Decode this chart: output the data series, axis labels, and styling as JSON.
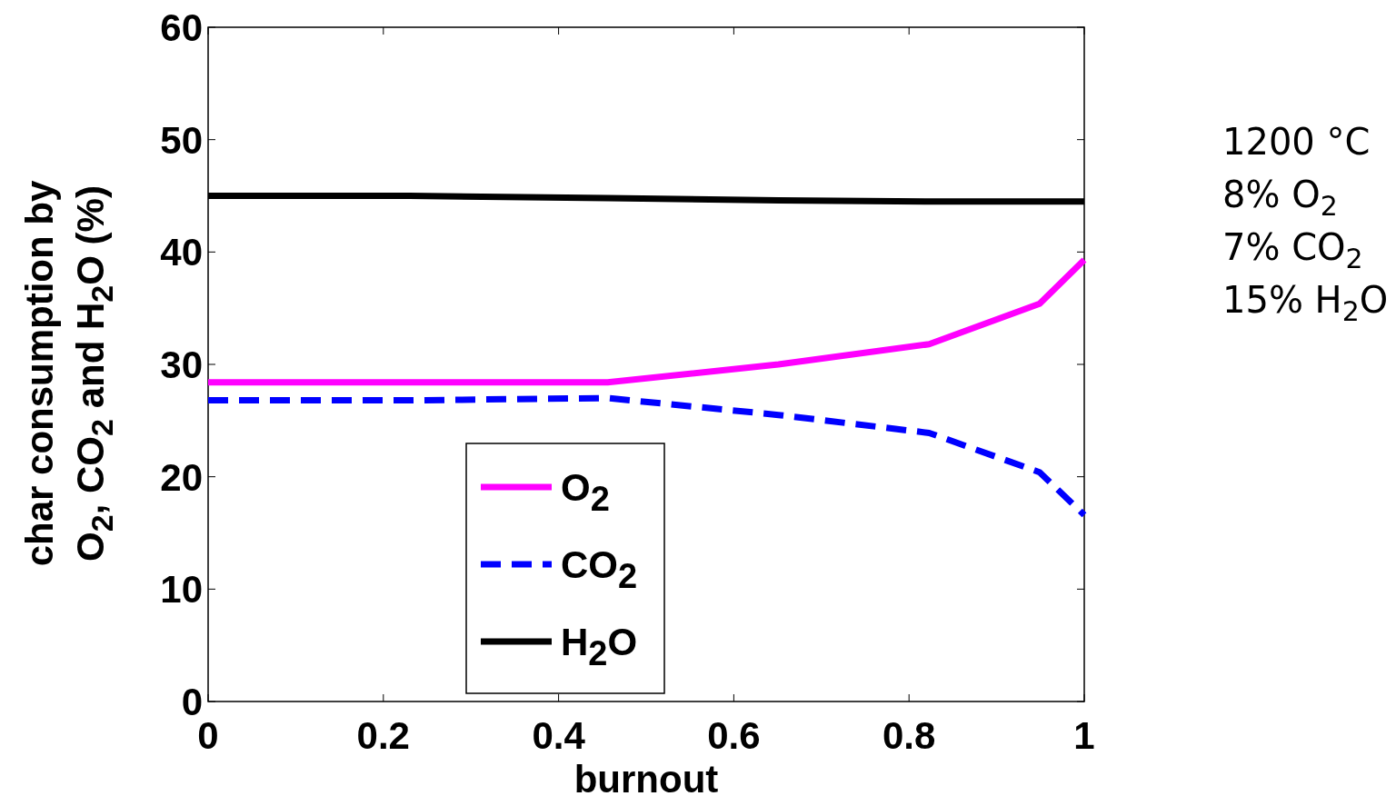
{
  "chart_data": {
    "type": "line",
    "xlabel": "burnout",
    "ylabel": "char consumption by\nO$_{2}$, CO$_{2}$ and H$_{2}$O (%)",
    "xlim": [
      0,
      1
    ],
    "ylim": [
      0,
      60
    ],
    "xticks": [
      0,
      0.2,
      0.4,
      0.6,
      0.8,
      1
    ],
    "yticks": [
      0,
      10,
      20,
      30,
      40,
      50,
      60
    ],
    "grid": false,
    "legend": "bottom",
    "annotations": [
      "1200 °C",
      "8% O$_{2}$",
      "7% CO$_{2}$",
      "15% H$_{2}$O"
    ],
    "series": [
      {
        "name": "O$_{2}$",
        "color": "#ff00ff",
        "line_style": "solid",
        "x": [
          0,
          0.456,
          0.651,
          0.823,
          0.949,
          1
        ],
        "values": [
          28.4,
          28.4,
          30.0,
          31.8,
          35.4,
          39.3
        ]
      },
      {
        "name": "CO$_{2}$",
        "color": "#0000ff",
        "line_style": "dashed",
        "x": [
          0,
          0.23,
          0.456,
          0.651,
          0.823,
          0.949,
          1
        ],
        "values": [
          26.8,
          26.8,
          27.0,
          25.5,
          23.9,
          20.4,
          16.6
        ]
      },
      {
        "name": "H$_{2}$O",
        "color": "#000000",
        "line_style": "solid",
        "x": [
          0,
          0.23,
          0.456,
          0.651,
          0.823,
          1
        ],
        "values": [
          45.0,
          45.0,
          44.8,
          44.6,
          44.5,
          44.5
        ]
      }
    ]
  }
}
